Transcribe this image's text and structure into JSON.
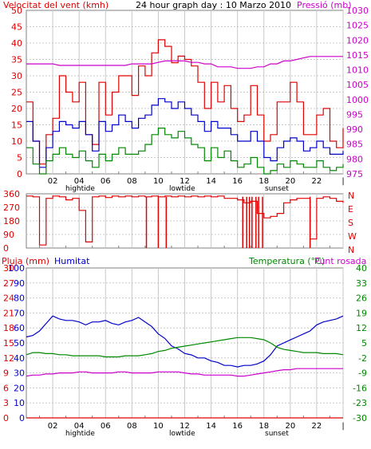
{
  "header": {
    "title": "24 hour graph day : 10 Marzo 2010",
    "left_label": "Velocitat del vent (kmh)",
    "right_label": "Pressió (mb)"
  },
  "colors": {
    "wind_max": "#e00000",
    "wind_avg": "#0000cc",
    "wind_min": "#008800",
    "pressure": "#cc00cc",
    "direction": "#e00000",
    "rain": "#e00000",
    "humidity": "#0000cc",
    "temperature": "#008800",
    "dewpoint": "#cc00cc",
    "left_axis": "#e00000",
    "right_axis": "#cc00cc",
    "humidity_axis": "#0000cc",
    "temp_axis": "#008800",
    "grid": "#c8c8c8"
  },
  "x_ticks": [
    "02",
    "04",
    "06",
    "08",
    "10",
    "12",
    "14",
    "16",
    "18",
    "20",
    "22",
    "|"
  ],
  "events": [
    "hightide",
    "lowtide",
    "sunset"
  ],
  "chart_data": [
    {
      "type": "line",
      "name": "wind-pressure",
      "x_hours": [
        0,
        0.5,
        1,
        1.5,
        2,
        2.5,
        3,
        3.5,
        4,
        4.5,
        5,
        5.5,
        6,
        6.5,
        7,
        7.5,
        8,
        8.5,
        9,
        9.5,
        10,
        10.5,
        11,
        11.5,
        12,
        12.5,
        13,
        13.5,
        14,
        14.5,
        15,
        15.5,
        16,
        16.5,
        17,
        17.5,
        18,
        18.5,
        19,
        19.5,
        20,
        20.5,
        21,
        21.5,
        22,
        22.5,
        23,
        23.5,
        24
      ],
      "left_axis": {
        "ticks": [
          0,
          5,
          10,
          15,
          20,
          25,
          30,
          35,
          40,
          45,
          50
        ],
        "ylim": [
          0,
          50
        ]
      },
      "right_axis": {
        "ticks": [
          975,
          980,
          985,
          990,
          995,
          1000,
          1005,
          1010,
          1015,
          1020,
          1025,
          1030
        ],
        "ylim": [
          975,
          1030
        ]
      },
      "series": [
        {
          "key": "wind_max",
          "axis": "left",
          "values": [
            22,
            10,
            3,
            12,
            17,
            30,
            25,
            22,
            28,
            12,
            9,
            28,
            18,
            25,
            30,
            30,
            24,
            33,
            30,
            37,
            41,
            39,
            34,
            36,
            35,
            33,
            28,
            20,
            28,
            22,
            27,
            20,
            16,
            18,
            27,
            18,
            10,
            12,
            22,
            22,
            28,
            22,
            12,
            12,
            18,
            20,
            10,
            8,
            14
          ]
        },
        {
          "key": "wind_avg",
          "axis": "left",
          "values": [
            16,
            10,
            2,
            8,
            13,
            16,
            15,
            14,
            16,
            12,
            7,
            16,
            13,
            15,
            18,
            16,
            14,
            17,
            18,
            21,
            23,
            22,
            20,
            22,
            20,
            18,
            16,
            13,
            16,
            14,
            14,
            12,
            10,
            10,
            13,
            10,
            5,
            4,
            8,
            10,
            11,
            10,
            7,
            8,
            10,
            8,
            6,
            6,
            7
          ]
        },
        {
          "key": "wind_min",
          "axis": "left",
          "values": [
            8,
            3,
            0,
            4,
            6,
            8,
            6,
            5,
            7,
            4,
            2,
            6,
            4,
            6,
            8,
            6,
            6,
            7,
            9,
            12,
            14,
            12,
            11,
            13,
            11,
            9,
            8,
            4,
            8,
            5,
            7,
            4,
            2,
            3,
            5,
            2,
            0,
            1,
            3,
            2,
            4,
            3,
            2,
            2,
            4,
            2,
            1,
            2,
            3
          ]
        },
        {
          "key": "pressure",
          "axis": "right",
          "values": [
            1012,
            1012,
            1012,
            1012,
            1012,
            1011.5,
            1011.5,
            1011.5,
            1011.5,
            1011.5,
            1011.5,
            1011.5,
            1011.5,
            1011.5,
            1011.5,
            1011.5,
            1012,
            1012,
            1012,
            1012,
            1012.5,
            1013,
            1013,
            1013,
            1013,
            1012.5,
            1012.5,
            1012,
            1012,
            1011,
            1011,
            1011,
            1010.5,
            1010.5,
            1010.5,
            1011,
            1011,
            1012,
            1012,
            1013,
            1013,
            1013.5,
            1014,
            1014.5,
            1014.5,
            1014.5,
            1014.5,
            1014.5,
            1014.5
          ]
        }
      ]
    },
    {
      "type": "line",
      "name": "wind-direction",
      "x_hours": [
        0,
        0.5,
        1,
        1.5,
        2,
        2.5,
        3,
        3.5,
        4,
        4.5,
        5,
        5.5,
        6,
        6.5,
        7,
        7.5,
        8,
        8.5,
        9,
        9.5,
        10,
        10.5,
        11,
        11.5,
        12,
        12.5,
        13,
        13.5,
        14,
        14.5,
        15,
        15.5,
        16,
        16.5,
        17,
        17.5,
        18,
        18.5,
        19,
        19.5,
        20,
        20.5,
        21,
        21.5,
        22,
        22.5,
        23,
        23.5,
        24
      ],
      "axis": {
        "ticks": [
          0,
          90,
          180,
          270,
          360
        ],
        "ylim": [
          0,
          360
        ]
      },
      "compass": [
        "N",
        "W",
        "S",
        "E",
        "N"
      ],
      "series": [
        {
          "key": "direction",
          "values": [
            345,
            340,
            20,
            330,
            345,
            340,
            320,
            330,
            250,
            40,
            340,
            345,
            335,
            345,
            340,
            345,
            340,
            345,
            340,
            345,
            340,
            345,
            340,
            345,
            340,
            345,
            340,
            345,
            340,
            345,
            330,
            330,
            320,
            300,
            310,
            230,
            200,
            210,
            230,
            300,
            320,
            330,
            330,
            60,
            330,
            340,
            330,
            310,
            300
          ]
        }
      ],
      "spikes_to_zero_hours": [
        9.1,
        10.0,
        10.6,
        16.4,
        16.7,
        16.9,
        17.1,
        17.4,
        17.6,
        17.9,
        21.5
      ]
    },
    {
      "type": "line",
      "name": "rain-humidity-temperature",
      "x_hours": [
        0,
        0.5,
        1,
        1.5,
        2,
        2.5,
        3,
        3.5,
        4,
        4.5,
        5,
        5.5,
        6,
        6.5,
        7,
        7.5,
        8,
        8.5,
        9,
        9.5,
        10,
        10.5,
        11,
        11.5,
        12,
        12.5,
        13,
        13.5,
        14,
        14.5,
        15,
        15.5,
        16,
        16.5,
        17,
        17.5,
        18,
        18.5,
        19,
        19.5,
        20,
        20.5,
        21,
        21.5,
        22,
        22.5,
        23,
        23.5,
        24
      ],
      "left_labels": {
        "title": "Pluja (mm)",
        "ticks": [
          0,
          3,
          6,
          9,
          12,
          15,
          18,
          21,
          24,
          27,
          30
        ]
      },
      "humidity_labels": {
        "title": "Humitat",
        "ticks": [
          0,
          10,
          20,
          30,
          40,
          50,
          60,
          70,
          80,
          90,
          100
        ],
        "ylim": [
          0,
          100
        ]
      },
      "right_labels": {
        "title_temp": "Temperatura (°C)",
        "title_dew": "Punt rosada",
        "ticks": [
          -30,
          -23,
          -16,
          -9,
          -2,
          5,
          12,
          19,
          26,
          33,
          40
        ],
        "ylim": [
          -30,
          40
        ]
      },
      "series": [
        {
          "key": "rain",
          "values": [
            0,
            0,
            0,
            0,
            0,
            0,
            0,
            0,
            0,
            0,
            0,
            0,
            0,
            0,
            0,
            0,
            0,
            0,
            0,
            0,
            0,
            0,
            0,
            0,
            0,
            0,
            0,
            0,
            0,
            0,
            0,
            0,
            0,
            0,
            0,
            0,
            0,
            0,
            0,
            0,
            0,
            0,
            0,
            0,
            0,
            0,
            0,
            0,
            0
          ]
        },
        {
          "key": "humidity",
          "values": [
            54,
            55,
            58,
            63,
            68,
            66,
            65,
            65,
            64,
            62,
            64,
            64,
            65,
            63,
            62,
            64,
            65,
            67,
            64,
            61,
            56,
            53,
            48,
            46,
            43,
            42,
            40,
            40,
            38,
            37,
            35,
            35,
            34,
            35,
            35,
            36,
            38,
            42,
            48,
            50,
            52,
            54,
            56,
            58,
            62,
            64,
            65,
            66,
            68
          ]
        },
        {
          "key": "temperature",
          "values": [
            -0.5,
            0.5,
            0.5,
            0.0,
            0.0,
            -0.5,
            -0.5,
            -1.0,
            -1.0,
            -1.0,
            -1.0,
            -1.0,
            -1.5,
            -1.5,
            -1.5,
            -1.0,
            -1.0,
            -1.0,
            -0.5,
            0.0,
            1.0,
            1.5,
            2.5,
            3.0,
            3.5,
            4.0,
            4.5,
            5.0,
            5.5,
            6.0,
            6.5,
            7.0,
            7.5,
            7.5,
            7.5,
            7.0,
            6.5,
            5.0,
            3.0,
            2.0,
            1.5,
            1.0,
            0.5,
            0.5,
            0.5,
            0.0,
            0.0,
            0.0,
            -0.5
          ]
        },
        {
          "key": "dewpoint",
          "values": [
            -10.5,
            -10.0,
            -10.0,
            -9.5,
            -9.5,
            -9.0,
            -9.0,
            -9.0,
            -8.5,
            -8.5,
            -9.0,
            -9.0,
            -9.0,
            -9.0,
            -8.5,
            -8.5,
            -9.0,
            -9.0,
            -9.0,
            -9.0,
            -8.5,
            -8.5,
            -8.5,
            -8.5,
            -9.0,
            -9.5,
            -9.5,
            -10.0,
            -10.0,
            -10.0,
            -10.0,
            -10.0,
            -10.5,
            -10.5,
            -10.0,
            -9.5,
            -9.0,
            -8.5,
            -8.0,
            -7.5,
            -7.5,
            -7.0,
            -7.0,
            -7.0,
            -7.0,
            -7.0,
            -7.0,
            -7.0,
            -7.0
          ]
        }
      ]
    }
  ]
}
